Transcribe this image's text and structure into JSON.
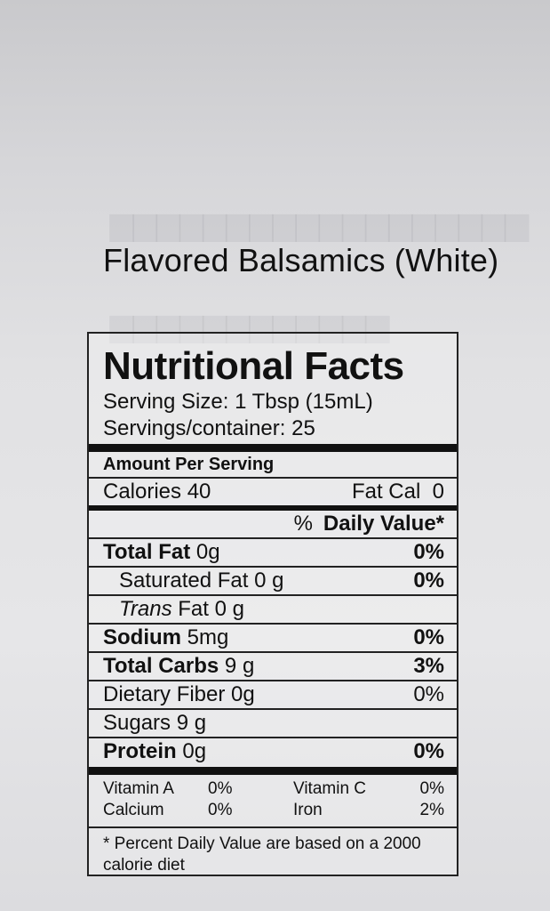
{
  "product_title": "Flavored Balsamics (White)",
  "label": {
    "title": "Nutritional Facts",
    "serving_size": "Serving Size: 1 Tbsp (15mL)",
    "servings_label": "Servings/container:",
    "servings_value": "25",
    "amount_per_serving": "Amount Per Serving",
    "calories": "Calories 40",
    "fat_cal": "Fat Cal  0",
    "dv_prefix": "%",
    "dv_label": "Daily Value*",
    "nutrients": {
      "total_fat": {
        "name": "Total Fat",
        "amount": "0g",
        "dv": "0%"
      },
      "saturated_fat": {
        "name": "Saturated Fat",
        "amount": "0 g",
        "dv": "0%"
      },
      "trans_fat": {
        "name": "Trans",
        "name_rest": "Fat 0 g"
      },
      "sodium": {
        "name": "Sodium",
        "amount": "5mg",
        "dv": "0%"
      },
      "total_carbs": {
        "name": "Total Carbs",
        "amount": "9 g",
        "dv": "3%"
      },
      "dietary_fiber": {
        "name": "Dietary Fiber 0g",
        "dv": "0%"
      },
      "sugars": {
        "name": "Sugars 9 g"
      },
      "protein": {
        "name": "Protein",
        "amount": "0g",
        "dv": "0%"
      }
    },
    "vitamins": {
      "vitamin_a": {
        "name": "Vitamin A",
        "value": "0%"
      },
      "vitamin_c": {
        "name": "Vitamin C",
        "value": "0%"
      },
      "calcium": {
        "name": "Calcium",
        "value": "0%"
      },
      "iron": {
        "name": "Iron",
        "value": "2%"
      }
    },
    "footnote": "* Percent Daily Value are based on a 2000 calorie diet"
  }
}
